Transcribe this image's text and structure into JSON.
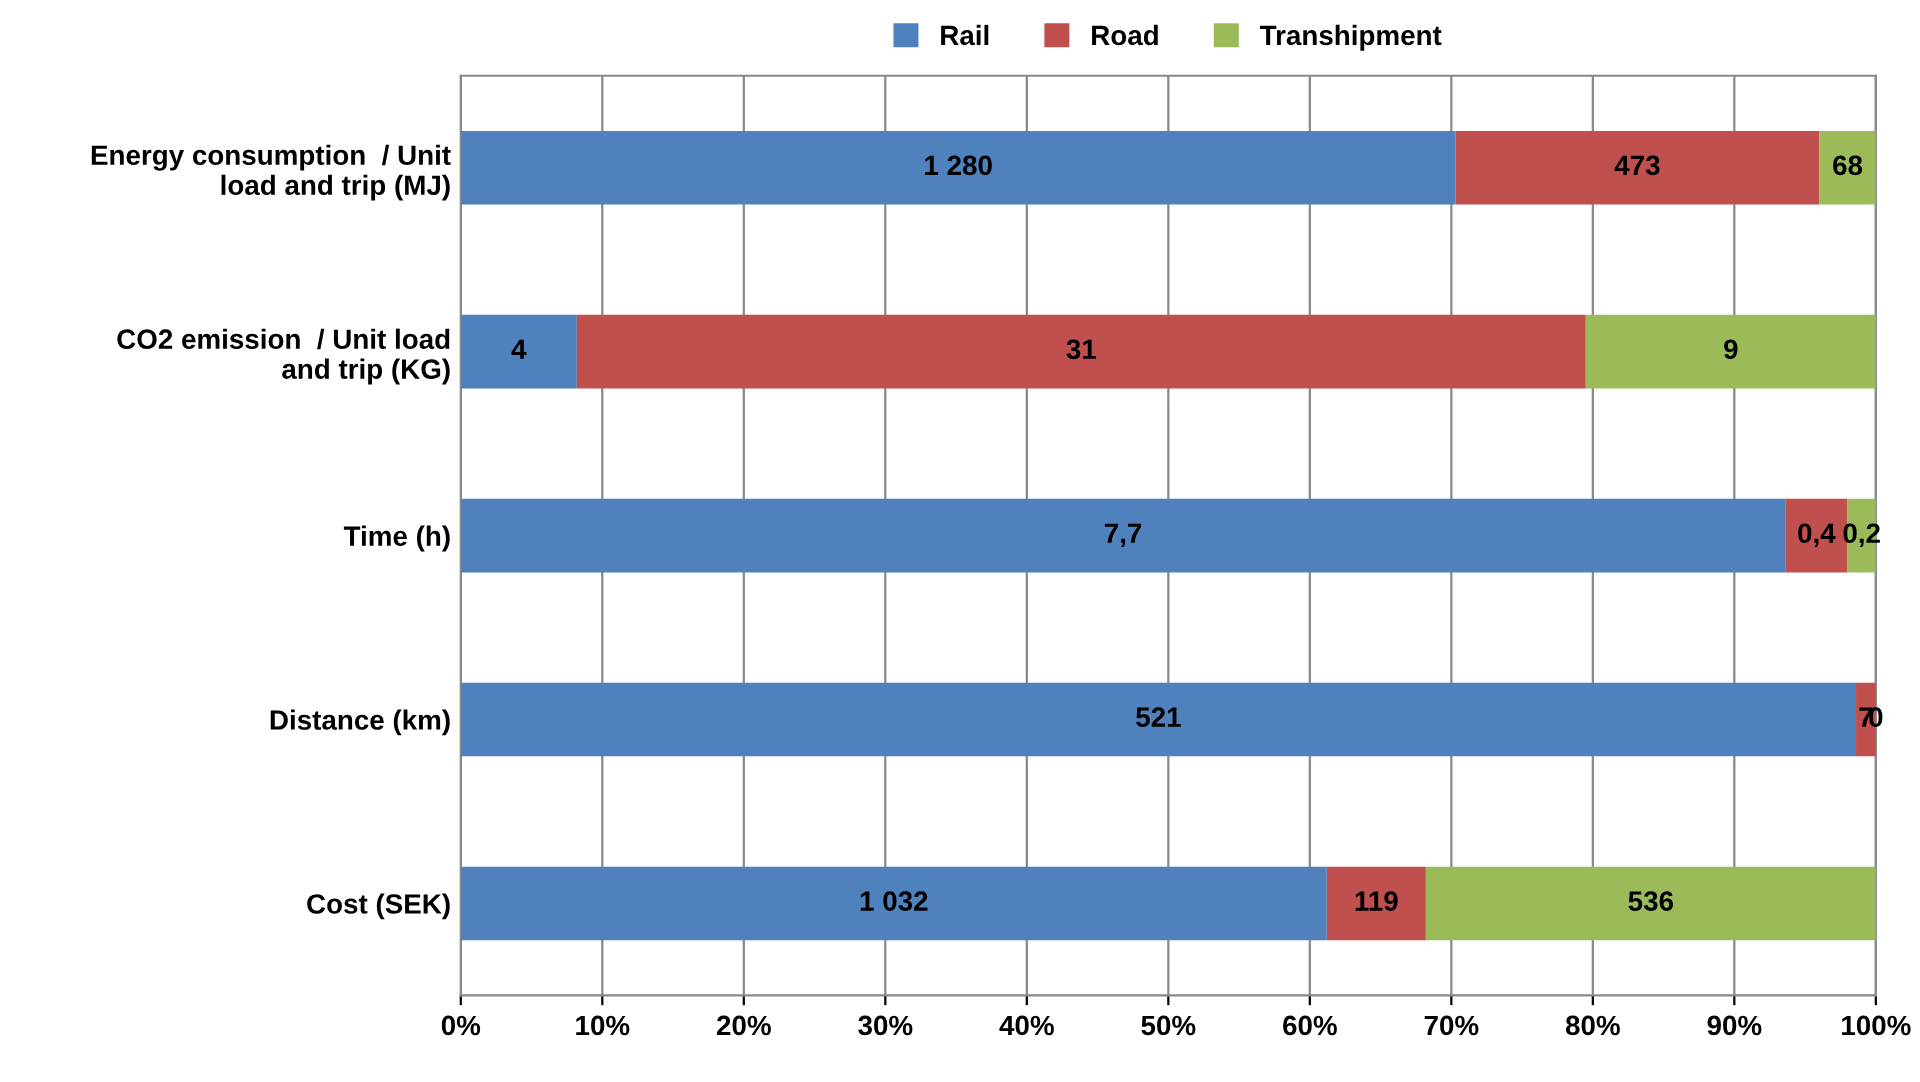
{
  "chart_data": {
    "type": "bar",
    "orientation": "horizontal",
    "stacked": true,
    "categories": [
      "Energy consumption  / Unit\nload and trip (MJ)",
      "CO2 emission  / Unit load\nand trip (KG)",
      "Time (h)",
      "Distance (km)",
      "Cost (SEK)"
    ],
    "series": [
      {
        "name": "Rail",
        "color": "#4f81bd",
        "values": [
          70.3,
          8.2,
          93.6,
          98.6,
          61.2
        ]
      },
      {
        "name": "Road",
        "color": "#c0504d",
        "values": [
          25.7,
          71.3,
          4.4,
          1.4,
          7.0
        ]
      },
      {
        "name": "Transhipment",
        "color": "#9bbb59",
        "values": [
          4.0,
          20.5,
          2.0,
          0,
          31.8
        ]
      }
    ],
    "annotations": [
      "1 280",
      "473",
      "68",
      "4",
      "31",
      "9",
      "7,7",
      "0,4",
      "0,2",
      "521",
      "7",
      "0",
      "1 032",
      "119",
      "536"
    ],
    "xlim": [
      0,
      100
    ],
    "xticks": [
      {
        "value": 0,
        "label": "0%"
      },
      {
        "value": 10,
        "label": "10%"
      },
      {
        "value": 20,
        "label": "20%"
      },
      {
        "value": 30,
        "label": "30%"
      },
      {
        "value": 40,
        "label": "40%"
      },
      {
        "value": 50,
        "label": "50%"
      },
      {
        "value": 60,
        "label": "60%"
      },
      {
        "value": 70,
        "label": "70%"
      },
      {
        "value": 80,
        "label": "80%"
      },
      {
        "value": 90,
        "label": "90%"
      },
      {
        "value": 100,
        "label": "100%"
      }
    ],
    "grid": "x",
    "legend": "top"
  }
}
